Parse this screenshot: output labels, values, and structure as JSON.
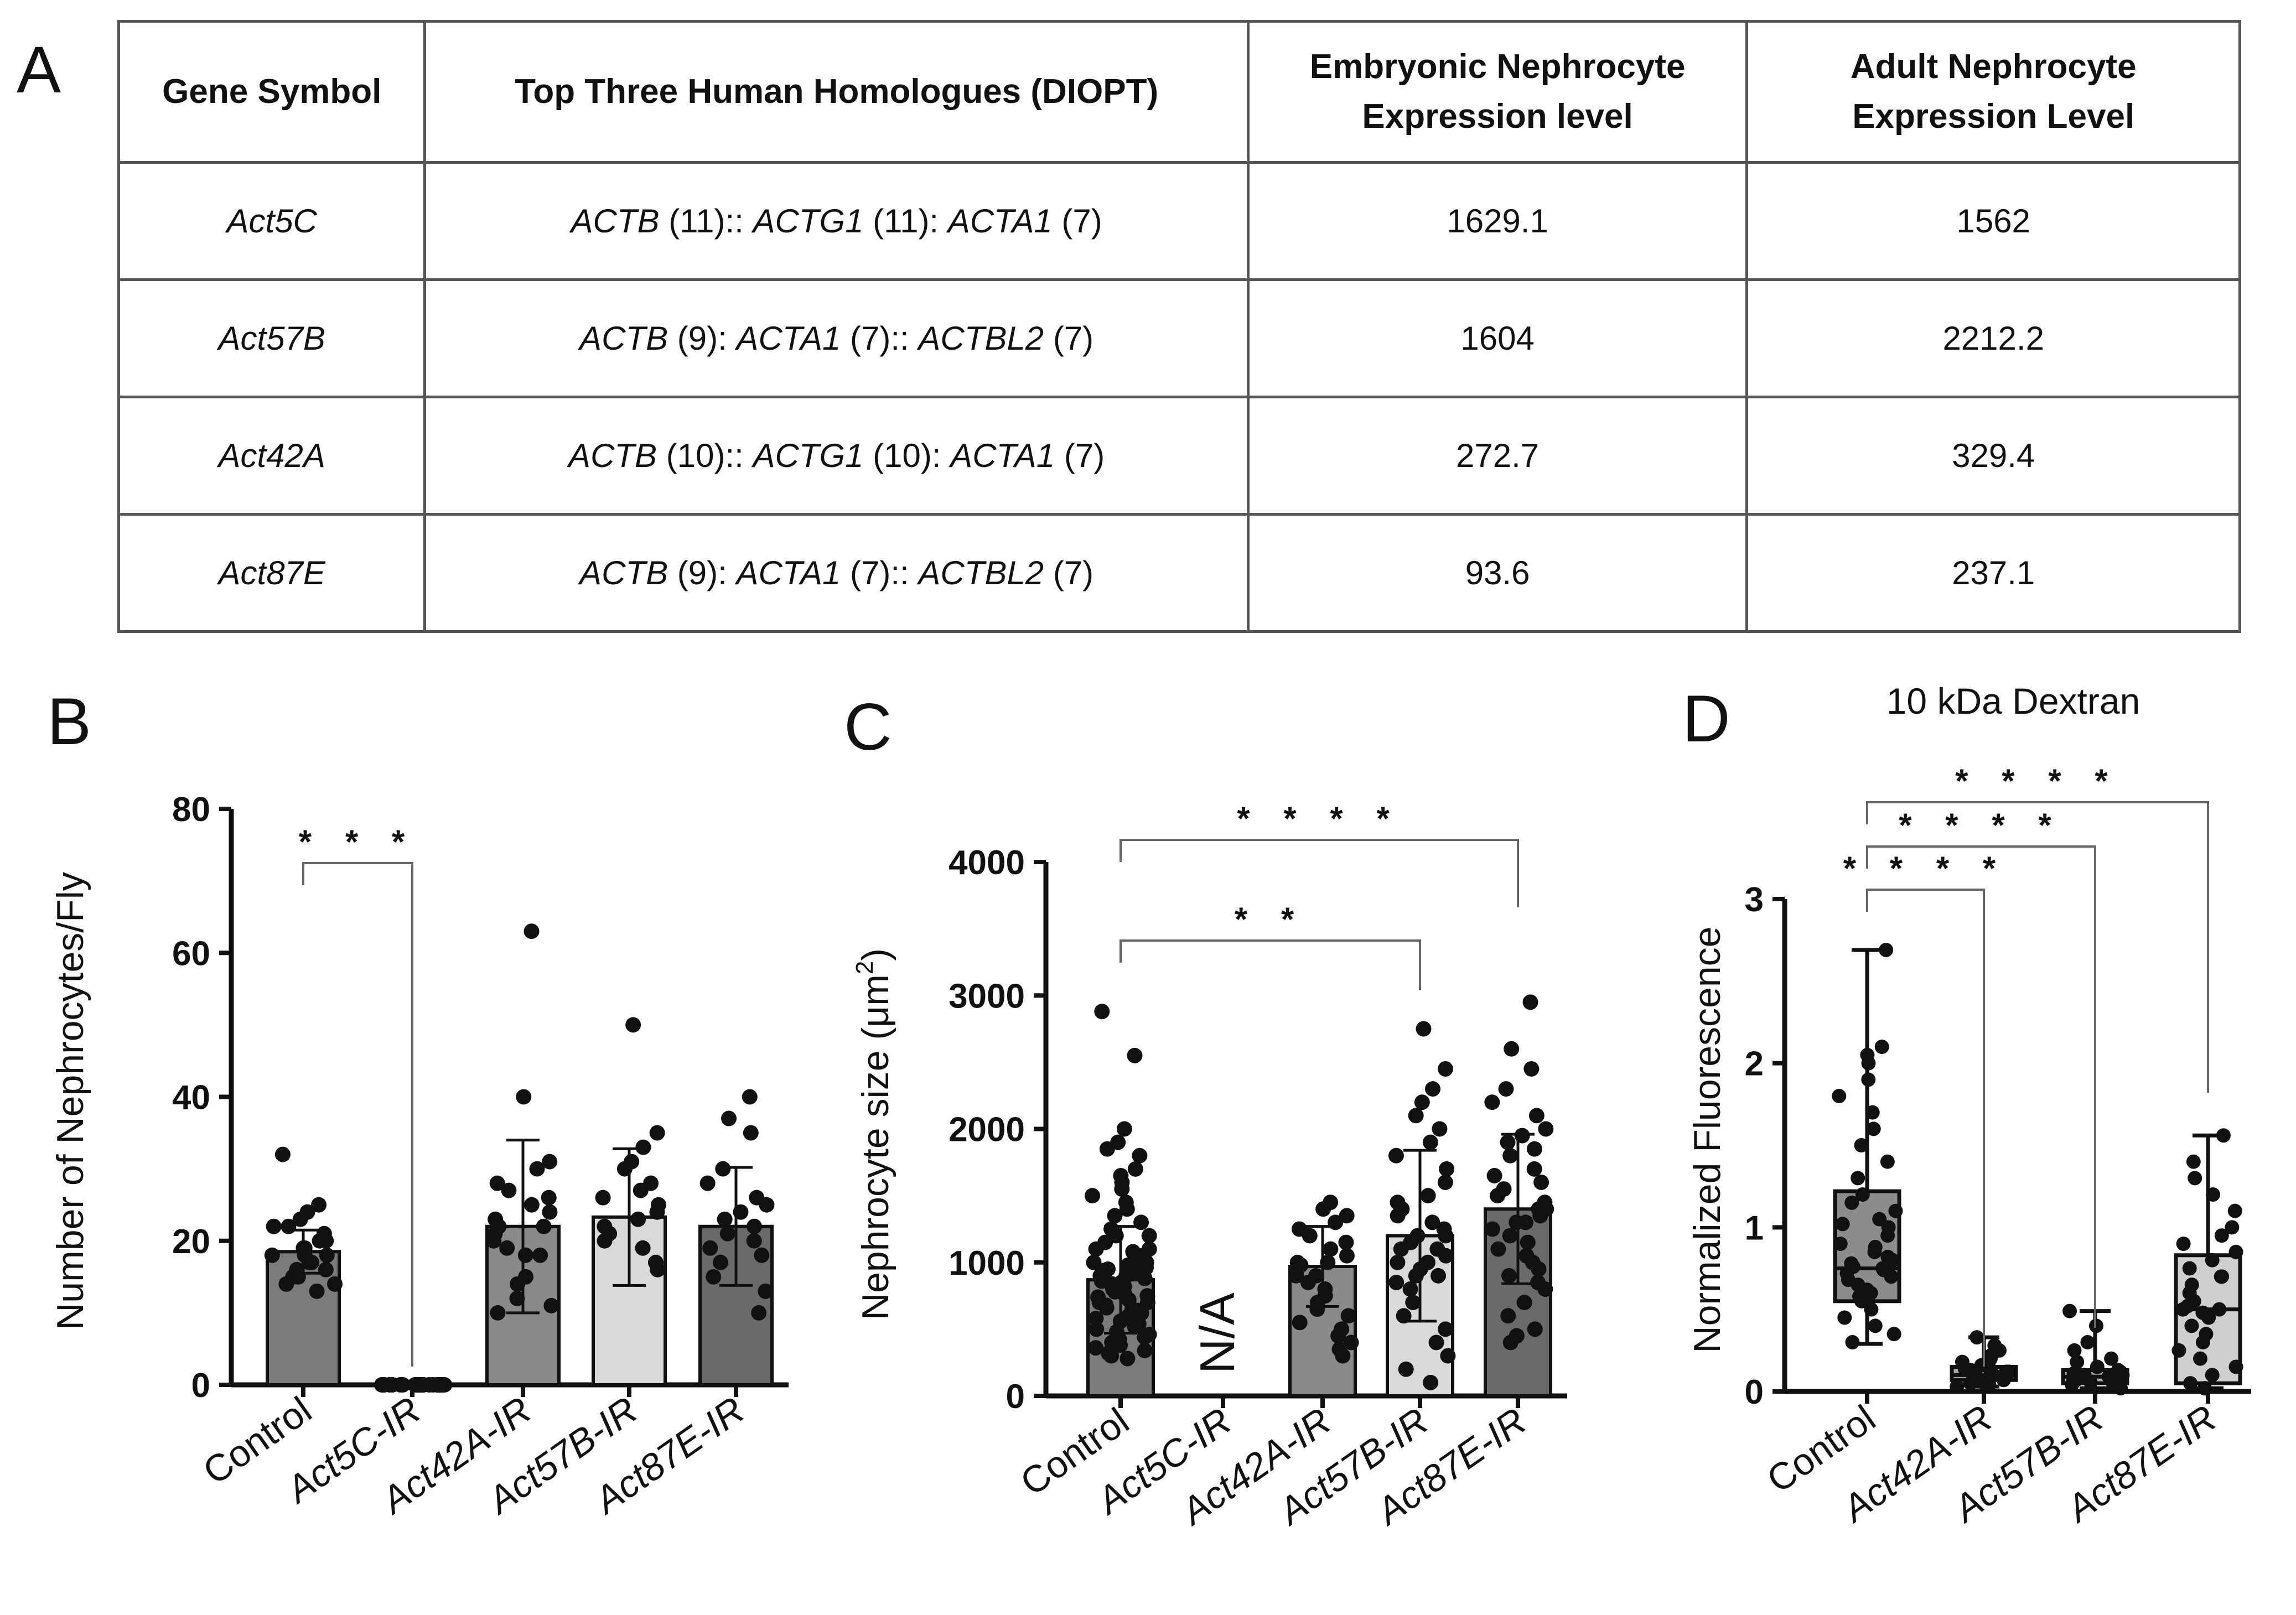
{
  "panels": {
    "a": "A",
    "b": "B",
    "c": "C",
    "d": "D"
  },
  "table": {
    "headers": [
      "Gene Symbol",
      "Top Three Human Homologues (DIOPT)",
      "Embryonic Nephrocyte Expression level",
      "Adult Nephrocyte Expression Level"
    ],
    "rows": [
      {
        "gene": "Act5C",
        "homologues": [
          {
            "name": "ACTB",
            "score": " (11)::"
          },
          {
            "name": "ACTG1",
            "score": " (11):"
          },
          {
            "name": "ACTA1",
            "score": " (7)"
          }
        ],
        "embryonic": "1629.1",
        "adult": "1562"
      },
      {
        "gene": "Act57B",
        "homologues": [
          {
            "name": "ACTB",
            "score": " (9):"
          },
          {
            "name": "ACTA1",
            "score": " (7)::"
          },
          {
            "name": "ACTBL2",
            "score": " (7)"
          }
        ],
        "embryonic": "1604",
        "adult": "2212.2"
      },
      {
        "gene": "Act42A",
        "homologues": [
          {
            "name": "ACTB",
            "score": " (10)::"
          },
          {
            "name": "ACTG1",
            "score": " (10):"
          },
          {
            "name": "ACTA1",
            "score": " (7)"
          }
        ],
        "embryonic": "272.7",
        "adult": "329.4"
      },
      {
        "gene": "Act87E",
        "homologues": [
          {
            "name": "ACTB",
            "score": " (9):"
          },
          {
            "name": "ACTA1",
            "score": " (7)::"
          },
          {
            "name": "ACTBL2",
            "score": " (7)"
          }
        ],
        "embryonic": "93.6",
        "adult": "237.1"
      }
    ]
  },
  "chart_data": [
    {
      "panel": "B",
      "type": "bar",
      "title": "",
      "ylabel": "Number of Nephrocytes/Fly",
      "xlabel": "",
      "ylim": [
        0,
        80
      ],
      "yticks": [
        0,
        20,
        40,
        60,
        80
      ],
      "categories": [
        "Control",
        "Act5C-IR",
        "Act42A-IR",
        "Act57B-IR",
        "Act87E-IR"
      ],
      "italic_categories": [
        false,
        true,
        true,
        true,
        true
      ],
      "values": [
        18.5,
        0,
        22,
        23.3,
        22
      ],
      "errors": [
        3,
        0,
        12,
        9.5,
        8.2
      ],
      "colors": [
        "#7b7b7b",
        "#7b7b7b",
        "#8a8a8a",
        "#d9d9d9",
        "#6a6a6a"
      ],
      "points": [
        [
          32,
          25,
          24,
          23,
          22,
          21,
          20,
          19,
          19,
          18,
          18,
          17,
          17,
          16,
          16,
          15,
          15,
          14,
          14,
          13,
          18,
          20,
          22,
          17
        ],
        [
          0,
          0,
          0,
          0,
          0,
          0,
          0,
          0,
          0,
          0,
          0,
          0,
          0,
          0,
          0,
          0,
          0,
          0,
          0,
          0,
          0,
          0,
          0,
          0
        ],
        [
          63,
          40,
          31,
          30,
          28,
          27,
          26,
          25,
          24,
          23,
          22,
          21,
          20,
          19,
          18,
          15,
          14,
          12,
          11,
          10,
          22,
          18
        ],
        [
          50,
          35,
          33,
          31,
          30,
          28,
          27,
          26,
          25,
          24,
          23,
          22,
          21,
          20,
          19,
          17,
          16
        ],
        [
          40,
          37,
          35,
          30,
          28,
          26,
          25,
          24,
          23,
          22,
          21,
          20,
          19,
          18,
          17,
          15,
          13,
          10
        ]
      ],
      "significance": [
        {
          "from": 0,
          "to": 1,
          "label": "***"
        }
      ]
    },
    {
      "panel": "C",
      "type": "bar",
      "title": "",
      "ylabel": "Nephrocyte size (μm²)",
      "ylabel_main": "Nephrocyte size (μm",
      "ylabel_sup": "2",
      "ylabel_end": ")",
      "ylim": [
        0,
        4000
      ],
      "yticks": [
        0,
        1000,
        2000,
        3000,
        4000
      ],
      "categories": [
        "Control",
        "Act5C-IR",
        "Act42A-IR",
        "Act57B-IR",
        "Act87E-IR"
      ],
      "italic_categories": [
        false,
        true,
        true,
        true,
        true
      ],
      "values": [
        870,
        null,
        970,
        1200,
        1400
      ],
      "errors": [
        400,
        0,
        300,
        640,
        560
      ],
      "colors": [
        "#7b7b7b",
        "#7b7b7b",
        "#8a8a8a",
        "#d9d9d9",
        "#6a6a6a"
      ],
      "na_label": "N/A",
      "points": [
        [
          2880,
          2550,
          2000,
          1900,
          1850,
          1800,
          1700,
          1650,
          1600,
          1550,
          1500,
          1450,
          1400,
          1350,
          1300,
          1250,
          1200,
          1150,
          1100,
          1080,
          1050,
          1020,
          1000,
          980,
          960,
          940,
          920,
          900,
          880,
          860,
          840,
          820,
          800,
          780,
          760,
          740,
          720,
          700,
          680,
          660,
          640,
          620,
          600,
          580,
          560,
          540,
          520,
          500,
          480,
          460,
          440,
          420,
          400,
          380,
          360,
          340,
          320,
          300,
          280,
          900,
          850,
          950,
          1000,
          750,
          700,
          650,
          1100,
          1200,
          800
        ],
        [],
        [
          1450,
          1400,
          1350,
          1300,
          1250,
          1200,
          1150,
          1100,
          1050,
          1000,
          980,
          950,
          900,
          850,
          800,
          750,
          700,
          650,
          600,
          550,
          500,
          450,
          400,
          350,
          300,
          1000,
          900
        ],
        [
          2750,
          2450,
          2300,
          2200,
          2100,
          2000,
          1900,
          1800,
          1700,
          1600,
          1500,
          1450,
          1400,
          1350,
          1300,
          1250,
          1200,
          1150,
          1100,
          1050,
          1000,
          950,
          900,
          850,
          800,
          700,
          600,
          500,
          400,
          300,
          200,
          100,
          1200,
          1100,
          900,
          1000
        ],
        [
          2950,
          2600,
          2450,
          2300,
          2200,
          2100,
          2000,
          1950,
          1900,
          1850,
          1800,
          1700,
          1650,
          1600,
          1550,
          1500,
          1450,
          1400,
          1350,
          1300,
          1250,
          1200,
          1150,
          1100,
          1050,
          1000,
          950,
          900,
          850,
          800,
          700,
          600,
          500,
          450,
          400,
          1400,
          1300
        ]
      ],
      "significance": [
        {
          "from": 0,
          "to": 3,
          "label": "**"
        },
        {
          "from": 0,
          "to": 4,
          "label": "****"
        }
      ]
    },
    {
      "panel": "D",
      "type": "box",
      "title": "10 kDa Dextran",
      "ylabel": "Normalized Fluorescence",
      "ylim": [
        0,
        3
      ],
      "yticks": [
        0,
        1,
        2,
        3
      ],
      "categories": [
        "Control",
        "Act42A-IR",
        "Act57B-IR",
        "Act87E-IR"
      ],
      "italic_categories": [
        false,
        true,
        true,
        true
      ],
      "boxes": [
        {
          "min": 0.29,
          "q1": 0.55,
          "median": 0.75,
          "q3": 1.22,
          "max": 2.69
        },
        {
          "min": 0.03,
          "q1": 0.07,
          "median": 0.1,
          "q3": 0.15,
          "max": 0.33
        },
        {
          "min": 0.02,
          "q1": 0.05,
          "median": 0.09,
          "q3": 0.13,
          "max": 0.49
        },
        {
          "min": 0.02,
          "q1": 0.05,
          "median": 0.5,
          "q3": 0.83,
          "max": 1.56
        }
      ],
      "colors": [
        "#8c8c8c",
        "#a8a8a8",
        "#a8a8a8",
        "#cfcfcf"
      ],
      "points": [
        [
          2.69,
          2.1,
          2.05,
          2.0,
          1.9,
          1.8,
          1.7,
          1.6,
          1.5,
          1.4,
          1.3,
          1.2,
          1.15,
          1.1,
          1.05,
          1.0,
          0.95,
          0.9,
          0.85,
          0.8,
          0.78,
          0.75,
          0.72,
          0.7,
          0.68,
          0.65,
          0.6,
          0.58,
          0.55,
          0.5,
          0.45,
          0.4,
          0.35,
          0.3,
          0.76,
          0.74,
          0.82,
          0.88,
          1.02,
          0.62
        ],
        [
          0.33,
          0.28,
          0.25,
          0.22,
          0.2,
          0.18,
          0.16,
          0.15,
          0.14,
          0.13,
          0.12,
          0.11,
          0.1,
          0.09,
          0.08,
          0.07,
          0.06,
          0.05,
          0.04,
          0.03,
          0.1,
          0.12
        ],
        [
          0.49,
          0.4,
          0.3,
          0.25,
          0.2,
          0.18,
          0.15,
          0.13,
          0.12,
          0.11,
          0.1,
          0.09,
          0.08,
          0.07,
          0.06,
          0.05,
          0.04,
          0.03,
          0.02,
          0.1
        ],
        [
          1.56,
          1.4,
          1.3,
          1.2,
          1.1,
          1.0,
          0.95,
          0.9,
          0.85,
          0.8,
          0.75,
          0.7,
          0.65,
          0.6,
          0.55,
          0.5,
          0.45,
          0.4,
          0.35,
          0.3,
          0.25,
          0.2,
          0.15,
          0.1,
          0.05,
          0.02,
          0.5,
          0.48,
          0.52,
          0.7
        ]
      ],
      "significance": [
        {
          "from": 0,
          "to": 1,
          "label": "****"
        },
        {
          "from": 0,
          "to": 2,
          "label": "****"
        },
        {
          "from": 0,
          "to": 3,
          "label": "****"
        }
      ]
    }
  ]
}
